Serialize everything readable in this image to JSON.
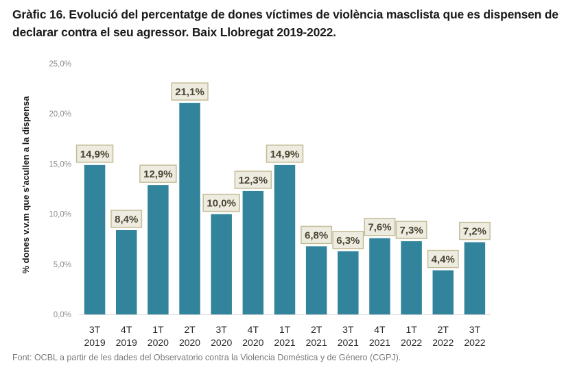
{
  "title": "Gràfic 16. Evolució del percentatge de dones víctimes de violència masclista que es dispensen de declarar contra el seu agressor. Baix Llobregat 2019-2022.",
  "source": "Font: OCBL a partir de les dades del Observatorio contra la Violencia Doméstica y de Género (CGPJ).",
  "colors": {
    "bar": "#31849b",
    "label_bg": "#eeece1",
    "label_border": "#c4bd97",
    "axis": "#d9d9d9"
  },
  "chart_data": {
    "type": "bar",
    "title": "Gràfic 16. Evolució del percentatge de dones víctimes de violència masclista que es dispensen de declarar contra el seu agressor. Baix Llobregat 2019-2022.",
    "xlabel": "",
    "ylabel": "% dones  v.v.m que  s'acullen a la dispensa",
    "ylim": [
      0,
      25
    ],
    "yticks": [
      0,
      5,
      10,
      15,
      20,
      25
    ],
    "ytick_labels": [
      "0,0%",
      "5,0%",
      "10,0%",
      "15,0%",
      "20,0%",
      "25,0%"
    ],
    "grid": false,
    "legend": "none",
    "categories": [
      [
        "3T",
        "2019"
      ],
      [
        "4T",
        "2019"
      ],
      [
        "1T",
        "2020"
      ],
      [
        "2T",
        "2020"
      ],
      [
        "3T",
        "2020"
      ],
      [
        "4T",
        "2020"
      ],
      [
        "1T",
        "2021"
      ],
      [
        "2T",
        "2021"
      ],
      [
        "3T",
        "2021"
      ],
      [
        "4T",
        "2021"
      ],
      [
        "1T",
        "2022"
      ],
      [
        "2T",
        "2022"
      ],
      [
        "3T",
        "2022"
      ]
    ],
    "values": [
      14.9,
      8.4,
      12.9,
      21.1,
      10.0,
      12.3,
      14.9,
      6.8,
      6.3,
      7.6,
      7.3,
      4.4,
      7.2
    ],
    "data_labels": [
      "14,9%",
      "8,4%",
      "12,9%",
      "21,1%",
      "10,0%",
      "12,3%",
      "14,9%",
      "6,8%",
      "6,3%",
      "7,6%",
      "7,3%",
      "4,4%",
      "7,2%"
    ]
  }
}
